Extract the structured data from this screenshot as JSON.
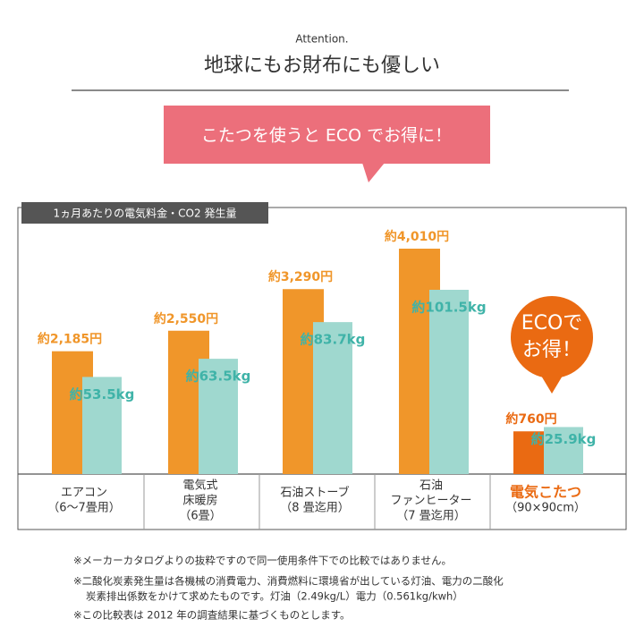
{
  "header": {
    "kicker": "Attention.",
    "title": "地球にもお財布にも優しい",
    "banner": "こたつを使うと ECO でお得に！"
  },
  "chart_data": {
    "type": "bar",
    "title": "1ヵ月あたりの電気料金・CO2 発生量",
    "categories": [
      [
        "エアコン",
        "（6〜7畳用）"
      ],
      [
        "電気式",
        "床暖房",
        "（6畳）"
      ],
      [
        "石油ストーブ",
        "（8 畳迄用）"
      ],
      [
        "石油",
        "ファンヒーター",
        "（7 畳迄用）"
      ],
      [
        "電気こたつ",
        "（90×90cm）"
      ]
    ],
    "series": [
      {
        "name": "電気料金",
        "color": "#f0962a",
        "colors": [
          "#f0962a",
          "#f0962a",
          "#f0962a",
          "#f0962a",
          "#ea6a12"
        ],
        "values": [
          2185,
          2550,
          3290,
          4010,
          760
        ],
        "value_labels": [
          "約2,185円",
          "約2,550円",
          "約3,290円",
          "約4,010円",
          "約760円"
        ]
      },
      {
        "name": "CO2 発生量",
        "color": "#9fd8cf",
        "values": [
          53.5,
          63.5,
          83.7,
          101.5,
          25.9
        ],
        "value_labels": [
          "約53.5kg",
          "約63.5kg",
          "約83.7kg",
          "約101.5kg",
          "約25.9kg"
        ]
      }
    ],
    "badge": [
      "ECOで",
      "お得！"
    ]
  },
  "notes": [
    "※メーカーカタログよりの抜粋ですので同一使用条件下での比較ではありません。",
    "※二酸化炭素発生量は各機械の消費電力、消費燃料に環境省が出している灯油、電力の二酸化",
    "炭素排出係数をかけて求めたものです。灯油（2.49kg/L）電力（0.561kg/kwh）",
    "※この比較表は 2012 年の調査結果に基づくものとします。"
  ]
}
